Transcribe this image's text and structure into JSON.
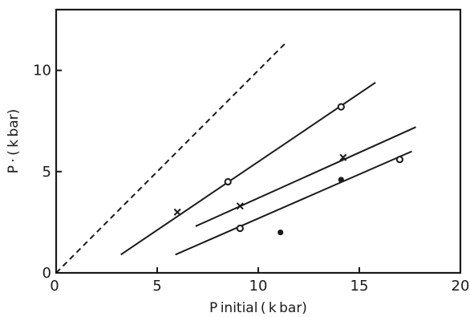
{
  "chart_data": {
    "type": "scatter",
    "title": "",
    "xlabel": "P initial ( k bar)",
    "ylabel": "P · ( k bar)",
    "xlim": [
      0,
      20
    ],
    "ylim": [
      0,
      13
    ],
    "xticks": [
      0,
      5,
      10,
      15,
      20
    ],
    "yticks": [
      0,
      5,
      10
    ],
    "grid": false,
    "legend": "none",
    "colors": {
      "ink": "#1a1a1a",
      "background": "#ffffff"
    },
    "reference_line": {
      "style": "dashed",
      "x": [
        0,
        11.3
      ],
      "y": [
        0,
        11.3
      ]
    },
    "lines": [
      {
        "x": [
          3.2,
          15.8
        ],
        "y": [
          0.9,
          9.4
        ]
      },
      {
        "x": [
          6.9,
          17.8
        ],
        "y": [
          2.3,
          7.2
        ]
      },
      {
        "x": [
          5.9,
          17.6
        ],
        "y": [
          0.9,
          6.0
        ]
      }
    ],
    "series": [
      {
        "marker": "open-circle",
        "points": [
          {
            "x": 8.5,
            "y": 4.5
          },
          {
            "x": 14.1,
            "y": 8.2
          },
          {
            "x": 9.1,
            "y": 2.2
          },
          {
            "x": 17.0,
            "y": 5.6
          }
        ]
      },
      {
        "marker": "cross",
        "points": [
          {
            "x": 6.0,
            "y": 3.0
          },
          {
            "x": 9.1,
            "y": 3.3
          },
          {
            "x": 14.2,
            "y": 5.7
          }
        ]
      },
      {
        "marker": "filled-circle",
        "points": [
          {
            "x": 11.1,
            "y": 2.0
          },
          {
            "x": 14.1,
            "y": 4.6
          }
        ]
      }
    ]
  }
}
